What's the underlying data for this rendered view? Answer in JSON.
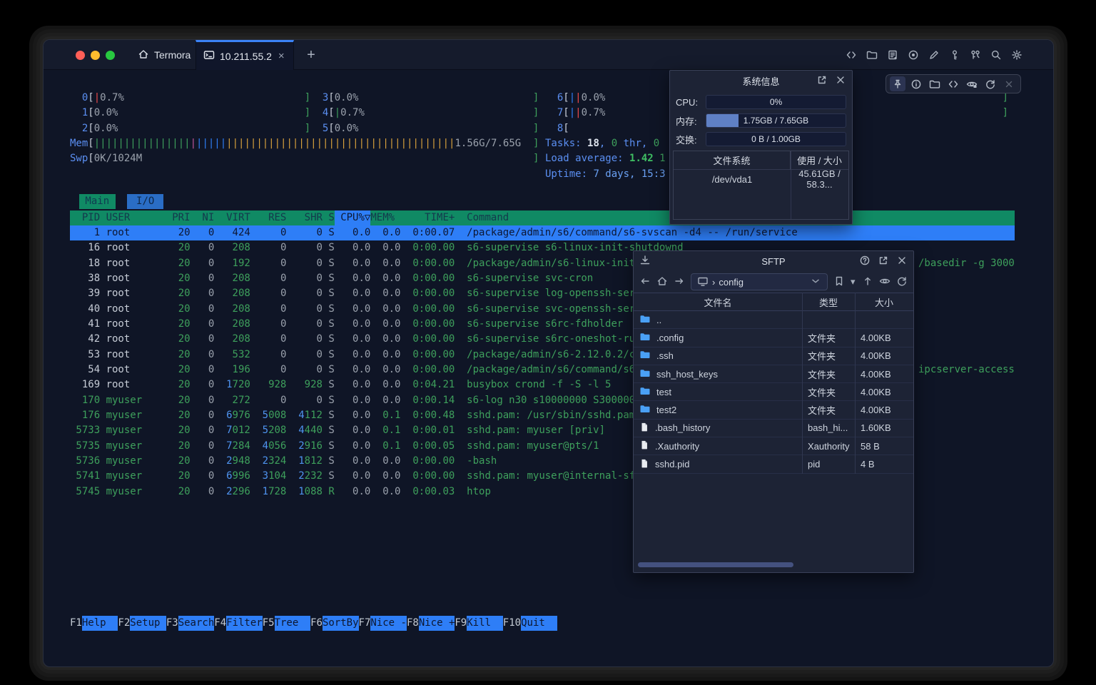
{
  "chrome": {
    "app_tab": "Termora",
    "active_tab": "10.211.55.2",
    "close_tab": "×",
    "new_tab": "+"
  },
  "htop": {
    "cpu_meters": [
      {
        "label": "0",
        "col": 0,
        "row": 0,
        "bars": [
          [
            "r",
            1
          ]
        ],
        "pct": "0.7%"
      },
      {
        "label": "1",
        "col": 0,
        "row": 1,
        "bars": [],
        "pct": "0.0%"
      },
      {
        "label": "2",
        "col": 0,
        "row": 2,
        "bars": [],
        "pct": "0.0%"
      },
      {
        "label": "3",
        "col": 1,
        "row": 0,
        "bars": [],
        "pct": "0.0%"
      },
      {
        "label": "4",
        "col": 1,
        "row": 1,
        "bars": [
          [
            "g",
            1
          ]
        ],
        "pct": "0.7%"
      },
      {
        "label": "5",
        "col": 1,
        "row": 2,
        "bars": [],
        "pct": "0.0%"
      },
      {
        "label": "6",
        "col": 2,
        "row": 0,
        "bars": [
          [
            "b",
            1
          ],
          [
            "r",
            1
          ]
        ],
        "pct": "0.0%"
      },
      {
        "label": "7",
        "col": 2,
        "row": 1,
        "bars": [
          [
            "b",
            1
          ],
          [
            "r",
            1
          ]
        ],
        "pct": "0.7%"
      },
      {
        "label": "8",
        "col": 2,
        "row": 2,
        "bars": [],
        "pct": null
      }
    ],
    "mem_meter": {
      "label": "Mem",
      "bars": [
        [
          "g",
          16
        ],
        [
          "m",
          1
        ],
        [
          "b",
          5
        ],
        [
          "o",
          38
        ]
      ],
      "text": "1.56G/7.65G"
    },
    "swp_meter": {
      "label": "Swp",
      "bars": [],
      "text": "0K/1024M"
    },
    "info_lines": [
      [
        [
          "lbl",
          "Tasks: "
        ],
        [
          "wht",
          "18"
        ],
        [
          "lbl",
          ", "
        ],
        [
          "grn",
          "0"
        ],
        [
          "lbl",
          " thr, "
        ],
        [
          "grn",
          "0"
        ]
      ],
      [
        [
          "lbl",
          "Load average: "
        ],
        [
          "grnb",
          "1.42 "
        ],
        [
          "grn",
          "1"
        ]
      ],
      [
        [
          "lbl",
          "Uptime: "
        ],
        [
          "cyn",
          "7 days, 15:3"
        ]
      ]
    ],
    "tabs": [
      {
        "label": "Main",
        "active": true
      },
      {
        "label": "I/O",
        "active": false
      }
    ],
    "columns": {
      "pid": "PID",
      "user": "USER",
      "pri": "PRI",
      "ni": "NI",
      "virt": "VIRT",
      "res": "RES",
      "shr": "SHR",
      "s": "S",
      "cpu": "CPU%▽",
      "mem": "MEM%",
      "time": "TIME+",
      "cmd": "Command"
    },
    "processes": [
      {
        "pid": "1",
        "user": "root",
        "pri": "20",
        "ni": "0",
        "virt": "424",
        "res": "0",
        "shr": "0",
        "s": "S",
        "cpu": "0.0",
        "mem": "0.0",
        "time": "0:00.07",
        "cmd": "/package/admin/s6/command/s6-svscan -d4 -- /run/service",
        "selected": true
      },
      {
        "pid": "16",
        "user": "root",
        "pri": "20",
        "ni": "0",
        "virt": "208",
        "res": "0",
        "shr": "0",
        "s": "S",
        "cpu": "0.0",
        "mem": "0.0",
        "time": "0:00.00",
        "cmd": "s6-supervise s6-linux-init-shutdownd"
      },
      {
        "pid": "18",
        "user": "root",
        "pri": "20",
        "ni": "0",
        "virt": "192",
        "res": "0",
        "shr": "0",
        "s": "S",
        "cpu": "0.0",
        "mem": "0.0",
        "time": "0:00.00",
        "cmd": "/package/admin/s6-linux-init/"
      },
      {
        "pid": "38",
        "user": "root",
        "pri": "20",
        "ni": "0",
        "virt": "208",
        "res": "0",
        "shr": "0",
        "s": "S",
        "cpu": "0.0",
        "mem": "0.0",
        "time": "0:00.00",
        "cmd": "s6-supervise svc-cron"
      },
      {
        "pid": "39",
        "user": "root",
        "pri": "20",
        "ni": "0",
        "virt": "208",
        "res": "0",
        "shr": "0",
        "s": "S",
        "cpu": "0.0",
        "mem": "0.0",
        "time": "0:00.00",
        "cmd": "s6-supervise log-openssh-serv"
      },
      {
        "pid": "40",
        "user": "root",
        "pri": "20",
        "ni": "0",
        "virt": "208",
        "res": "0",
        "shr": "0",
        "s": "S",
        "cpu": "0.0",
        "mem": "0.0",
        "time": "0:00.00",
        "cmd": "s6-supervise svc-openssh-serv"
      },
      {
        "pid": "41",
        "user": "root",
        "pri": "20",
        "ni": "0",
        "virt": "208",
        "res": "0",
        "shr": "0",
        "s": "S",
        "cpu": "0.0",
        "mem": "0.0",
        "time": "0:00.00",
        "cmd": "s6-supervise s6rc-fdholder"
      },
      {
        "pid": "42",
        "user": "root",
        "pri": "20",
        "ni": "0",
        "virt": "208",
        "res": "0",
        "shr": "0",
        "s": "S",
        "cpu": "0.0",
        "mem": "0.0",
        "time": "0:00.00",
        "cmd": "s6-supervise s6rc-oneshot-run"
      },
      {
        "pid": "53",
        "user": "root",
        "pri": "20",
        "ni": "0",
        "virt": "532",
        "res": "0",
        "shr": "0",
        "s": "S",
        "cpu": "0.0",
        "mem": "0.0",
        "time": "0:00.00",
        "cmd": "/package/admin/s6-2.12.0.2/co"
      },
      {
        "pid": "54",
        "user": "root",
        "pri": "20",
        "ni": "0",
        "virt": "196",
        "res": "0",
        "shr": "0",
        "s": "S",
        "cpu": "0.0",
        "mem": "0.0",
        "time": "0:00.00",
        "cmd": "/package/admin/s6/command/s6-"
      },
      {
        "pid": "169",
        "user": "root",
        "pri": "20",
        "ni": "0",
        "virt": "1720",
        "res": "928",
        "shr": "928",
        "s": "S",
        "cpu": "0.0",
        "mem": "0.0",
        "time": "0:04.21",
        "cmd": "busybox crond -f -S -l 5"
      },
      {
        "pid": "170",
        "user": "myuser",
        "pri": "20",
        "ni": "0",
        "virt": "272",
        "res": "0",
        "shr": "0",
        "s": "S",
        "cpu": "0.0",
        "mem": "0.0",
        "time": "0:00.14",
        "cmd": "s6-log n30 s10000000 S3000000"
      },
      {
        "pid": "176",
        "user": "myuser",
        "pri": "20",
        "ni": "0",
        "virt": "6976",
        "res": "5008",
        "shr": "4112",
        "s": "S",
        "cpu": "0.0",
        "mem": "0.1",
        "time": "0:00.48",
        "cmd": "sshd.pam: /usr/sbin/sshd.pam"
      },
      {
        "pid": "5733",
        "user": "myuser",
        "pri": "20",
        "ni": "0",
        "virt": "7012",
        "res": "5208",
        "shr": "4440",
        "s": "S",
        "cpu": "0.0",
        "mem": "0.1",
        "time": "0:00.01",
        "cmd": "sshd.pam: myuser [priv]"
      },
      {
        "pid": "5735",
        "user": "myuser",
        "pri": "20",
        "ni": "0",
        "virt": "7284",
        "res": "4056",
        "shr": "2916",
        "s": "S",
        "cpu": "0.0",
        "mem": "0.1",
        "time": "0:00.05",
        "cmd": "sshd.pam: myuser@pts/1"
      },
      {
        "pid": "5736",
        "user": "myuser",
        "pri": "20",
        "ni": "0",
        "virt": "2948",
        "res": "2324",
        "shr": "1812",
        "s": "S",
        "cpu": "0.0",
        "mem": "0.0",
        "time": "0:00.00",
        "cmd": "-bash"
      },
      {
        "pid": "5741",
        "user": "myuser",
        "pri": "20",
        "ni": "0",
        "virt": "6996",
        "res": "3104",
        "shr": "2232",
        "s": "S",
        "cpu": "0.0",
        "mem": "0.0",
        "time": "0:00.00",
        "cmd": "sshd.pam: myuser@internal-sft"
      },
      {
        "pid": "5745",
        "user": "myuser",
        "pri": "20",
        "ni": "0",
        "virt": "2296",
        "res": "1728",
        "shr": "1088",
        "s": "R",
        "cpu": "0.0",
        "mem": "0.0",
        "time": "0:00.03",
        "cmd": "htop"
      }
    ],
    "cmd_tails": [
      {
        "row": 2,
        "text": "/basedir -g 3000"
      },
      {
        "row": 9,
        "text": "ipcserver-access"
      }
    ],
    "fn_keys": [
      {
        "key": "F1",
        "label": "Help"
      },
      {
        "key": "F2",
        "label": "Setup"
      },
      {
        "key": "F3",
        "label": "Search"
      },
      {
        "key": "F4",
        "label": "Filter"
      },
      {
        "key": "F5",
        "label": "Tree"
      },
      {
        "key": "F6",
        "label": "SortBy"
      },
      {
        "key": "F7",
        "label": "Nice -"
      },
      {
        "key": "F8",
        "label": "Nice +"
      },
      {
        "key": "F9",
        "label": "Kill"
      },
      {
        "key": "F10",
        "label": "Quit"
      }
    ]
  },
  "sysinfo": {
    "title": "系统信息",
    "rows": [
      {
        "label": "CPU:",
        "value": "0%",
        "fill": 0
      },
      {
        "label": "内存:",
        "value": "1.75GB / 7.65GB",
        "fill": 23
      },
      {
        "label": "交换:",
        "value": "0 B / 1.00GB",
        "fill": 0
      }
    ],
    "fs_headers": [
      "文件系统",
      "使用 / 大小"
    ],
    "fs_rows": [
      [
        "/dev/vda1",
        "45.61GB / 58.3..."
      ]
    ]
  },
  "sftp": {
    "title": "SFTP",
    "path": "config",
    "headers": [
      "文件名",
      "类型",
      "大小"
    ],
    "files": [
      {
        "name": "..",
        "icon": "folder",
        "type": "",
        "size": ""
      },
      {
        "name": ".config",
        "icon": "folder",
        "type": "文件夹",
        "size": "4.00KB"
      },
      {
        "name": ".ssh",
        "icon": "folder",
        "type": "文件夹",
        "size": "4.00KB"
      },
      {
        "name": "ssh_host_keys",
        "icon": "folder",
        "type": "文件夹",
        "size": "4.00KB"
      },
      {
        "name": "test",
        "icon": "folder",
        "type": "文件夹",
        "size": "4.00KB"
      },
      {
        "name": "test2",
        "icon": "folder",
        "type": "文件夹",
        "size": "4.00KB"
      },
      {
        "name": ".bash_history",
        "icon": "file",
        "type": "bash_hi...",
        "size": "1.60KB"
      },
      {
        "name": ".Xauthority",
        "icon": "file",
        "type": "Xauthority",
        "size": "58 B"
      },
      {
        "name": "sshd.pid",
        "icon": "file",
        "type": "pid",
        "size": "4 B"
      }
    ]
  }
}
